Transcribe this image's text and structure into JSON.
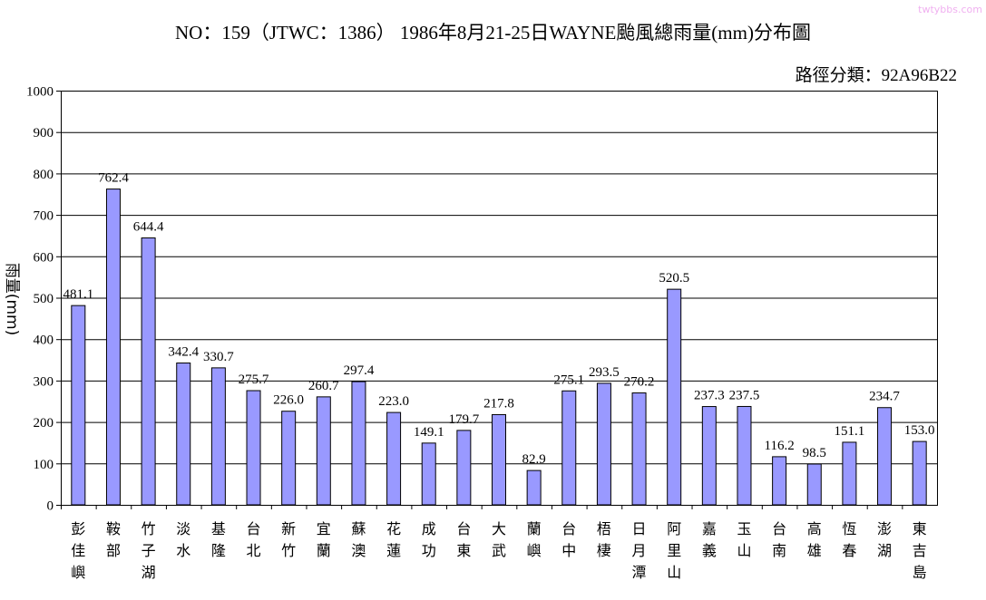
{
  "watermark": "twtybbs.com",
  "chart_data": {
    "type": "bar",
    "title": "NO：159（JTWC：1386） 1986年8月21-25日WAYNE颱風總雨量(mm)分布圖",
    "subtitle": "路徑分類：92A96B22",
    "xlabel": "",
    "ylabel": "雨量(mm)",
    "ylim": [
      0,
      1000
    ],
    "yticks": [
      0,
      100,
      200,
      300,
      400,
      500,
      600,
      700,
      800,
      900,
      1000
    ],
    "grid": true,
    "bar_color": "#9999FF",
    "categories": [
      "彭佳嶼",
      "鞍部",
      "竹子湖",
      "淡水",
      "基隆",
      "台北",
      "新竹",
      "宜蘭",
      "蘇澳",
      "花蓮",
      "成功",
      "台東",
      "大武",
      "蘭嶼",
      "台中",
      "梧棲",
      "日月潭",
      "阿里山",
      "嘉義",
      "玉山",
      "台南",
      "高雄",
      "恆春",
      "澎湖",
      "東吉島"
    ],
    "values": [
      481.1,
      762.4,
      644.4,
      342.4,
      330.7,
      275.7,
      226.0,
      260.7,
      297.4,
      223.0,
      149.1,
      179.7,
      217.8,
      82.9,
      275.1,
      293.5,
      270.2,
      520.5,
      237.3,
      237.5,
      116.2,
      98.5,
      151.1,
      234.7,
      153.0
    ]
  }
}
